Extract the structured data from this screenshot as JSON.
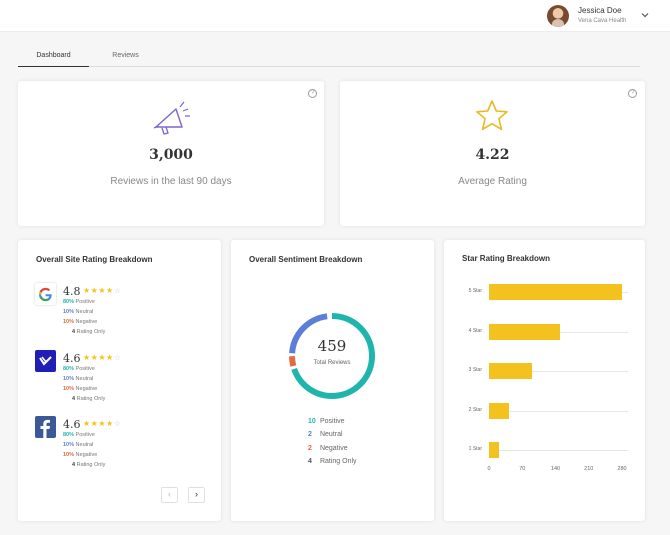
{
  "header": {
    "user_name": "Jessica Doe",
    "user_org": "Vena Cava Health"
  },
  "tabs": [
    {
      "label": "Dashboard",
      "active": true
    },
    {
      "label": "Reviews",
      "active": false
    }
  ],
  "summary": {
    "reviews": {
      "value": "3,000",
      "label": "Reviews in the last 90 days",
      "icon": "megaphone-icon"
    },
    "rating": {
      "value": "4.22",
      "label": "Average Rating",
      "icon": "star-icon"
    }
  },
  "site_breakdown": {
    "title": "Overall Site Rating Breakdown",
    "sites": [
      {
        "icon": "google-icon",
        "score": "4.8",
        "stars_filled": 4,
        "stars_total": 5,
        "positive": "80%",
        "positive_label": "Positive",
        "neutral": "10%",
        "neutral_label": "Neutral",
        "negative": "10%",
        "negative_label": "Negative",
        "rating_only": "4",
        "rating_only_label": "Rating Only"
      },
      {
        "icon": "healthgrades-icon",
        "score": "4.6",
        "stars_filled": 4,
        "stars_total": 5,
        "positive": "80%",
        "positive_label": "Positive",
        "neutral": "10%",
        "neutral_label": "Neutral",
        "negative": "10%",
        "negative_label": "Negative",
        "rating_only": "4",
        "rating_only_label": "Rating Only"
      },
      {
        "icon": "facebook-icon",
        "score": "4.6",
        "stars_filled": 4,
        "stars_total": 5,
        "positive": "80%",
        "positive_label": "Positive",
        "neutral": "10%",
        "neutral_label": "Neutral",
        "negative": "10%",
        "negative_label": "Negative",
        "rating_only": "4",
        "rating_only_label": "Rating Only"
      }
    ],
    "pager_prev": "‹",
    "pager_next": "›"
  },
  "sentiment": {
    "title": "Overall Sentiment Breakdown",
    "total": "459",
    "total_label": "Total Reviews",
    "legend": [
      {
        "count": "10",
        "label": "Positive",
        "color": "#1fb5ad"
      },
      {
        "count": "2",
        "label": "Neutral",
        "color": "#5b7fd8"
      },
      {
        "count": "2",
        "label": "Negative",
        "color": "#e46a40"
      },
      {
        "count": "4",
        "label": "Rating Only",
        "color": "#555555"
      }
    ]
  },
  "star_breakdown": {
    "title": "Star Rating Breakdown"
  },
  "chart_data": {
    "type": "bar",
    "orientation": "horizontal",
    "categories": [
      "5 Star",
      "4 Star",
      "3 Star",
      "2 Star",
      "1 Star"
    ],
    "values": [
      280,
      150,
      90,
      42,
      20
    ],
    "xticks": [
      0,
      70,
      140,
      210,
      280
    ],
    "xlim": [
      0,
      280
    ],
    "color": "#f4c21f",
    "grid": true
  },
  "colors": {
    "accent_teal": "#1fb5ad",
    "accent_blue": "#5b7fd8",
    "accent_orange": "#e46a40",
    "star_yellow": "#f0c419",
    "bar_yellow": "#f4c21f"
  }
}
